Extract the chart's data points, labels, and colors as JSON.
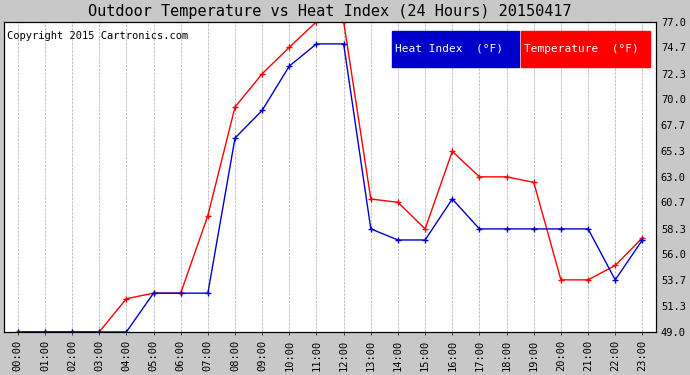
{
  "title": "Outdoor Temperature vs Heat Index (24 Hours) 20150417",
  "copyright": "Copyright 2015 Cartronics.com",
  "legend_heat": "Heat Index  (°F)",
  "legend_temp": "Temperature  (°F)",
  "hours": [
    "00:00",
    "01:00",
    "02:00",
    "03:00",
    "04:00",
    "05:00",
    "06:00",
    "07:00",
    "08:00",
    "09:00",
    "10:00",
    "11:00",
    "12:00",
    "13:00",
    "14:00",
    "15:00",
    "16:00",
    "17:00",
    "18:00",
    "19:00",
    "20:00",
    "21:00",
    "22:00",
    "23:00"
  ],
  "temperature": [
    49.0,
    49.0,
    49.0,
    49.0,
    52.0,
    52.5,
    52.5,
    59.5,
    69.3,
    72.3,
    74.7,
    77.0,
    77.0,
    61.0,
    60.7,
    58.3,
    65.3,
    63.0,
    63.0,
    62.5,
    53.7,
    53.7,
    55.0,
    57.5
  ],
  "heat_index": [
    49.0,
    49.0,
    49.0,
    49.0,
    49.0,
    52.5,
    52.5,
    52.5,
    66.5,
    69.0,
    73.0,
    75.0,
    75.0,
    58.3,
    57.3,
    57.3,
    61.0,
    58.3,
    58.3,
    58.3,
    58.3,
    58.3,
    53.7,
    57.3
  ],
  "temp_color": "#ff0000",
  "heat_color": "#0000cc",
  "background_color": "#c8c8c8",
  "plot_bg_color": "#ffffff",
  "grid_color": "#aaaaaa",
  "ylim_min": 49.0,
  "ylim_max": 77.0,
  "yticks": [
    49.0,
    51.3,
    53.7,
    56.0,
    58.3,
    60.7,
    63.0,
    65.3,
    67.7,
    70.0,
    72.3,
    74.7,
    77.0
  ],
  "title_fontsize": 11,
  "tick_fontsize": 7.5,
  "legend_fontsize": 8,
  "copyright_fontsize": 7.5
}
